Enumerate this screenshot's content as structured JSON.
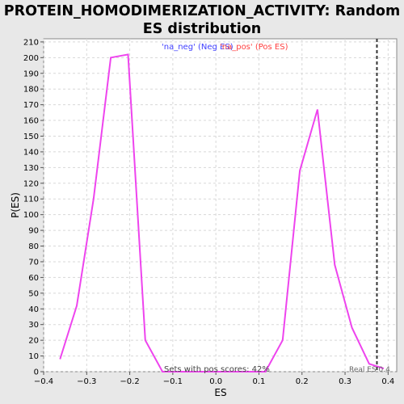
{
  "chart_data": {
    "type": "line",
    "title_lines": [
      "PROTEIN_HOMODIMERIZATION_ACTIVITY: Random",
      "ES distribution"
    ],
    "xlabel": "ES",
    "ylabel": "P(ES)",
    "xlim": [
      -0.4,
      0.42
    ],
    "ylim": [
      0,
      212
    ],
    "x_ticks": [
      -0.4,
      -0.3,
      -0.2,
      -0.1,
      0.0,
      0.1,
      0.2,
      0.3,
      0.4
    ],
    "x_tick_labels": [
      "−0.4",
      "−0.3",
      "−0.2",
      "−0.1",
      "0.0",
      "0.1",
      "0.2",
      "0.3",
      "0.4"
    ],
    "y_ticks": [
      0,
      10,
      20,
      30,
      40,
      50,
      60,
      70,
      80,
      90,
      100,
      110,
      120,
      130,
      140,
      150,
      160,
      170,
      180,
      190,
      200,
      210
    ],
    "y_tick_labels": [
      "0",
      "10",
      "20",
      "30",
      "40",
      "50",
      "60",
      "70",
      "80",
      "90",
      "100",
      "110",
      "120",
      "130",
      "140",
      "150",
      "160",
      "170",
      "180",
      "190",
      "200",
      "210"
    ],
    "grid": true,
    "legend": [
      {
        "label": "'na_neg' (Neg ES)",
        "color": "#4040ff"
      },
      {
        "label": "'na_pos' (Pos ES)",
        "color": "#ff4040"
      }
    ],
    "legend_placement": "top-center",
    "series": [
      {
        "color": "#ee44ee",
        "points": [
          [
            -0.362,
            8
          ],
          [
            -0.323,
            42
          ],
          [
            -0.284,
            110
          ],
          [
            -0.244,
            200
          ],
          [
            -0.204,
            202
          ],
          [
            -0.164,
            20
          ],
          [
            -0.124,
            0
          ],
          [
            -0.084,
            0
          ],
          [
            0.115,
            0
          ],
          [
            0.155,
            20
          ],
          [
            0.195,
            128
          ],
          [
            0.236,
            167
          ],
          [
            0.276,
            68
          ],
          [
            0.316,
            28
          ],
          [
            0.356,
            5
          ],
          [
            0.39,
            2
          ]
        ]
      }
    ],
    "real_es": 0.374,
    "real_es_label": "Real ES 0.4",
    "annotation": "Sets with pos scores: 42%",
    "colors": {
      "background": "#e8e8e8",
      "plot_bg": "#ffffff",
      "line": "#ee44ee",
      "grid": "#d8d8d8"
    }
  }
}
